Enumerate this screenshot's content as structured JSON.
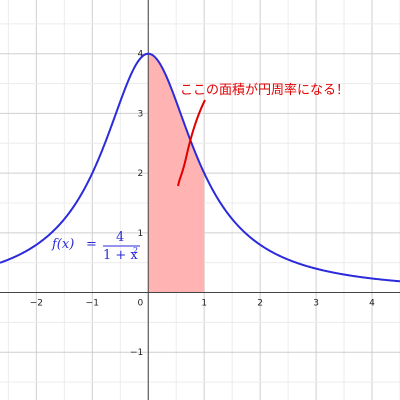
{
  "chart_data": {
    "type": "line",
    "title": "",
    "xlabel": "",
    "ylabel": "",
    "xlim": [
      -2.65,
      4.5
    ],
    "ylim": [
      -1.8,
      4.9
    ],
    "grid": true,
    "x_ticks": [
      -2,
      -1,
      1,
      2,
      3,
      4
    ],
    "y_ticks": [
      -1,
      1,
      2,
      3,
      4
    ],
    "origin_label": "0",
    "function": {
      "expression": "4/(1+x^2)",
      "label_lhs": "f(x)",
      "label_eq": "=",
      "label_num": "4",
      "label_den": "1 + x",
      "label_exp": "2",
      "color": "#2b2bdc"
    },
    "shaded_interval": [
      0,
      1
    ],
    "shade_color": "#ffb3b3",
    "annotation": {
      "text": "ここの面積が円周率になる！",
      "color": "#e00000"
    }
  }
}
